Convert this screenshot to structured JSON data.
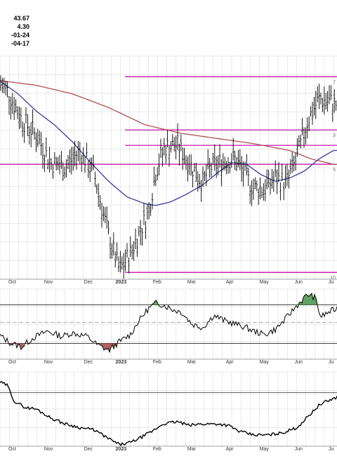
{
  "header": {
    "stats": [
      "43.67",
      "4.30",
      "-01-24",
      "-04-17"
    ]
  },
  "colors": {
    "fib_lines": "#c000a0",
    "ma_slow": "#b05050",
    "ma_fast": "#3b3c9c",
    "bars": "#000000",
    "grid": "#d4d4d4",
    "osc_positive_fill": "#3a8a3a",
    "osc_negative_fill": "#9a3b3b"
  },
  "chart_data": [
    {
      "type": "ohlc",
      "title": "",
      "x_tick_labels": [
        "Oct",
        "Nov",
        "Dec",
        "2023",
        "Feb",
        "Mar",
        "Apr",
        "May",
        "Jun",
        "Ju"
      ],
      "x_tick_positions": [
        0.3,
        1.3,
        2.4,
        3.3,
        4.3,
        5.25,
        6.3,
        7.25,
        8.2,
        9.1
      ],
      "x_range": [
        0,
        9.3
      ],
      "y_range": [
        38.5,
        51.5
      ],
      "grid": true,
      "price_anchors": [
        [
          -0.1,
          50.0
        ],
        [
          0.2,
          49.5
        ],
        [
          0.6,
          47.8
        ],
        [
          1.0,
          46.9
        ],
        [
          1.4,
          45.3
        ],
        [
          1.8,
          45.0
        ],
        [
          2.2,
          46.0
        ],
        [
          2.6,
          44.6
        ],
        [
          3.0,
          41.0
        ],
        [
          3.3,
          39.0
        ],
        [
          3.6,
          40.0
        ],
        [
          3.9,
          41.5
        ],
        [
          4.1,
          42.4
        ],
        [
          4.3,
          44.8
        ],
        [
          4.55,
          46.2
        ],
        [
          4.9,
          46.3
        ],
        [
          5.25,
          45.2
        ],
        [
          5.6,
          44.1
        ],
        [
          5.8,
          45.0
        ],
        [
          6.3,
          45.5
        ],
        [
          6.5,
          45.5
        ],
        [
          6.8,
          44.4
        ],
        [
          7.0,
          43.8
        ],
        [
          7.3,
          43.8
        ],
        [
          7.6,
          44.4
        ],
        [
          7.9,
          44.1
        ],
        [
          8.2,
          45.6
        ],
        [
          8.5,
          47.8
        ],
        [
          8.8,
          49.0
        ],
        [
          9.3,
          48.7
        ]
      ],
      "moving_average_fast": [
        [
          -0.1,
          50.2
        ],
        [
          0.5,
          49.3
        ],
        [
          1.0,
          48.3
        ],
        [
          1.5,
          47.5
        ],
        [
          2.0,
          46.5
        ],
        [
          2.5,
          45.3
        ],
        [
          3.0,
          44.2
        ],
        [
          3.5,
          43.3
        ],
        [
          4.0,
          42.9
        ],
        [
          4.3,
          42.8
        ],
        [
          4.7,
          43.0
        ],
        [
          5.1,
          43.4
        ],
        [
          5.6,
          44.0
        ],
        [
          6.0,
          44.7
        ],
        [
          6.4,
          45.3
        ],
        [
          6.8,
          45.2
        ],
        [
          7.2,
          44.6
        ],
        [
          7.6,
          44.2
        ],
        [
          8.0,
          44.4
        ],
        [
          8.4,
          44.8
        ],
        [
          8.8,
          45.5
        ],
        [
          9.2,
          46.0
        ]
      ],
      "moving_average_slow": [
        [
          -0.1,
          50.1
        ],
        [
          1.0,
          49.8
        ],
        [
          2.0,
          49.3
        ],
        [
          3.0,
          48.5
        ],
        [
          4.0,
          47.5
        ],
        [
          5.0,
          47.0
        ],
        [
          6.0,
          46.7
        ],
        [
          7.0,
          46.4
        ],
        [
          8.0,
          46.0
        ],
        [
          8.6,
          45.5
        ],
        [
          9.2,
          45.2
        ]
      ],
      "fibonacci_levels": [
        {
          "price": 50.3,
          "x_start": 3.45,
          "label": "7"
        },
        {
          "price": 47.2,
          "x_start": 3.45,
          "label": "3"
        },
        {
          "price": 46.3,
          "x_start": 3.45,
          "label": ""
        },
        {
          "price": 45.2,
          "x_start": -0.1,
          "label": "5"
        },
        {
          "price": 38.9,
          "x_start": 3.45,
          "label": "10"
        }
      ]
    },
    {
      "type": "line",
      "name": "oscillator",
      "y_range": [
        -1,
        1
      ],
      "reference_levels": [
        0.55,
        0.05,
        -0.55
      ],
      "midline": 0.05,
      "anchors": [
        [
          -0.1,
          -0.25
        ],
        [
          0.3,
          -0.55
        ],
        [
          0.6,
          -0.65
        ],
        [
          0.9,
          -0.4
        ],
        [
          1.3,
          -0.2
        ],
        [
          1.7,
          -0.35
        ],
        [
          2.0,
          -0.25
        ],
        [
          2.4,
          -0.35
        ],
        [
          2.7,
          -0.6
        ],
        [
          3.0,
          -0.75
        ],
        [
          3.3,
          -0.5
        ],
        [
          3.6,
          -0.3
        ],
        [
          3.8,
          0.05
        ],
        [
          4.1,
          0.45
        ],
        [
          4.3,
          0.6
        ],
        [
          4.5,
          0.55
        ],
        [
          4.8,
          0.4
        ],
        [
          5.0,
          0.35
        ],
        [
          5.3,
          0.0
        ],
        [
          5.6,
          -0.1
        ],
        [
          5.9,
          0.25
        ],
        [
          6.2,
          0.1
        ],
        [
          6.5,
          0.0
        ],
        [
          6.8,
          -0.1
        ],
        [
          7.0,
          -0.2
        ],
        [
          7.3,
          -0.3
        ],
        [
          7.6,
          -0.15
        ],
        [
          7.8,
          0.05
        ],
        [
          8.0,
          0.3
        ],
        [
          8.3,
          0.65
        ],
        [
          8.5,
          0.85
        ],
        [
          8.7,
          0.75
        ],
        [
          8.85,
          0.2
        ],
        [
          9.0,
          0.3
        ],
        [
          9.3,
          0.45
        ]
      ]
    },
    {
      "type": "line",
      "name": "cumulative indicator",
      "y_range": [
        0,
        1
      ],
      "reference_levels": [
        0.72
      ],
      "anchors": [
        [
          -0.1,
          0.88
        ],
        [
          0.2,
          0.82
        ],
        [
          0.4,
          0.6
        ],
        [
          0.7,
          0.52
        ],
        [
          1.0,
          0.5
        ],
        [
          1.4,
          0.38
        ],
        [
          1.8,
          0.3
        ],
        [
          2.2,
          0.25
        ],
        [
          2.6,
          0.22
        ],
        [
          3.0,
          0.1
        ],
        [
          3.3,
          0.02
        ],
        [
          3.6,
          0.05
        ],
        [
          3.9,
          0.12
        ],
        [
          4.2,
          0.2
        ],
        [
          4.5,
          0.3
        ],
        [
          4.9,
          0.33
        ],
        [
          5.2,
          0.28
        ],
        [
          5.6,
          0.3
        ],
        [
          6.0,
          0.3
        ],
        [
          6.3,
          0.28
        ],
        [
          6.6,
          0.2
        ],
        [
          7.0,
          0.15
        ],
        [
          7.4,
          0.15
        ],
        [
          7.8,
          0.18
        ],
        [
          8.2,
          0.25
        ],
        [
          8.5,
          0.4
        ],
        [
          8.8,
          0.55
        ],
        [
          9.0,
          0.6
        ],
        [
          9.3,
          0.66
        ]
      ]
    }
  ]
}
